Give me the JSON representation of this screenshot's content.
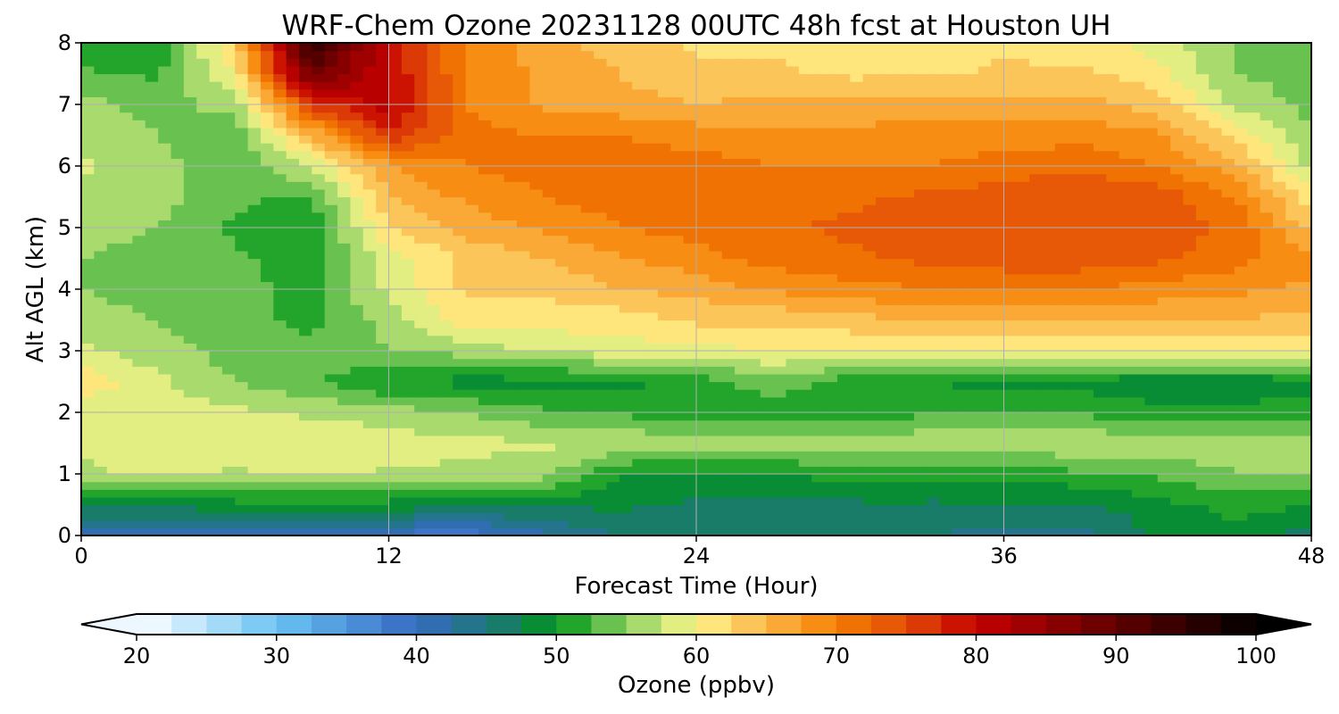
{
  "chart_data": {
    "type": "heatmap",
    "title": "WRF-Chem Ozone  20231128 00UTC 48h fcst at Houston UH",
    "xlabel": "Forecast Time (Hour)",
    "ylabel": "Alt AGL (km)",
    "xlim": [
      0,
      48
    ],
    "ylim": [
      0,
      8
    ],
    "xticks": [
      0,
      12,
      24,
      36,
      48
    ],
    "yticks": [
      0,
      1,
      2,
      3,
      4,
      5,
      6,
      7,
      8
    ],
    "grid": true,
    "x": [
      0,
      3,
      6,
      9,
      12,
      15,
      18,
      21,
      24,
      27,
      30,
      33,
      36,
      39,
      42,
      45,
      48
    ],
    "y": [
      0,
      0.5,
      1,
      1.5,
      2,
      2.5,
      3,
      3.5,
      4,
      4.5,
      5,
      5.5,
      6,
      6.5,
      7,
      7.5,
      8
    ],
    "z": [
      [
        40,
        40,
        41,
        40,
        39,
        38,
        42,
        45,
        46,
        45,
        45,
        45,
        44,
        44,
        48,
        49,
        46
      ],
      [
        48,
        48,
        49,
        49,
        49,
        48,
        48,
        48,
        47,
        47,
        47,
        47,
        47,
        47,
        49,
        51,
        50
      ],
      [
        57,
        58,
        57,
        58,
        57,
        57,
        56,
        50,
        49,
        50,
        51,
        51,
        51,
        52,
        53,
        55,
        55
      ],
      [
        58,
        59,
        60,
        60,
        59,
        58,
        58,
        57,
        57,
        56,
        56,
        57,
        57,
        57,
        57,
        56,
        56
      ],
      [
        58,
        59,
        58,
        57,
        56,
        55,
        53,
        52,
        51,
        51,
        51,
        52,
        52,
        52,
        51,
        51,
        51
      ],
      [
        62,
        58,
        55,
        53,
        50,
        49,
        49,
        49,
        51,
        54,
        51,
        50,
        49,
        49,
        48,
        48,
        49
      ],
      [
        58,
        56,
        54,
        53,
        55,
        56,
        58,
        59,
        59,
        60,
        60,
        60,
        60,
        60,
        60,
        60,
        60
      ],
      [
        56,
        55,
        53,
        52,
        56,
        61,
        61,
        61,
        63,
        63,
        64,
        65,
        65,
        65,
        65,
        65,
        64
      ],
      [
        55,
        54,
        53,
        52,
        58,
        63,
        63,
        65,
        66,
        68,
        69,
        70,
        70,
        70,
        69,
        68,
        67
      ],
      [
        55,
        54,
        53,
        51,
        59,
        63,
        65,
        67,
        69,
        71,
        72,
        73,
        74,
        74,
        73,
        71,
        68
      ],
      [
        56,
        55,
        52,
        51,
        62,
        66,
        68,
        70,
        71,
        72,
        73,
        74,
        75,
        75,
        74,
        72,
        64
      ],
      [
        57,
        56,
        53,
        52,
        65,
        68,
        70,
        71,
        72,
        72,
        72,
        73,
        74,
        75,
        74,
        70,
        61
      ],
      [
        58,
        56,
        53,
        58,
        67,
        70,
        71,
        71,
        71,
        70,
        70,
        70,
        71,
        72,
        70,
        66,
        57
      ],
      [
        57,
        55,
        53,
        65,
        77,
        71,
        70,
        70,
        69,
        68,
        68,
        69,
        69,
        69,
        68,
        62,
        55
      ],
      [
        56,
        54,
        56,
        76,
        81,
        70,
        67,
        66,
        65,
        66,
        66,
        66,
        66,
        66,
        64,
        57,
        54
      ],
      [
        53,
        52,
        60,
        89,
        80,
        70,
        67,
        65,
        63,
        63,
        62,
        62,
        63,
        63,
        61,
        55,
        54
      ],
      [
        50,
        51,
        63,
        95,
        79,
        70,
        66,
        64,
        62,
        62,
        61,
        61,
        62,
        61,
        59,
        55,
        54
      ]
    ],
    "colorbar": {
      "label": "Ozone  (ppbv)",
      "min": 20,
      "max": 100,
      "ticks": [
        20,
        30,
        40,
        50,
        60,
        70,
        80,
        90,
        100
      ],
      "extend": "both",
      "stops": [
        {
          "v": 20,
          "c": "#ffffff"
        },
        {
          "v": 30,
          "c": "#6ac4f4"
        },
        {
          "v": 40,
          "c": "#3569c2"
        },
        {
          "v": 46,
          "c": "#1b7a6e"
        },
        {
          "v": 50,
          "c": "#00961a"
        },
        {
          "v": 55,
          "c": "#8cd062"
        },
        {
          "v": 60,
          "c": "#fff68d"
        },
        {
          "v": 65,
          "c": "#fbb548"
        },
        {
          "v": 70,
          "c": "#f57f00"
        },
        {
          "v": 75,
          "c": "#e24c08"
        },
        {
          "v": 80,
          "c": "#c40000"
        },
        {
          "v": 90,
          "c": "#600000"
        },
        {
          "v": 100,
          "c": "#000000"
        }
      ]
    }
  }
}
